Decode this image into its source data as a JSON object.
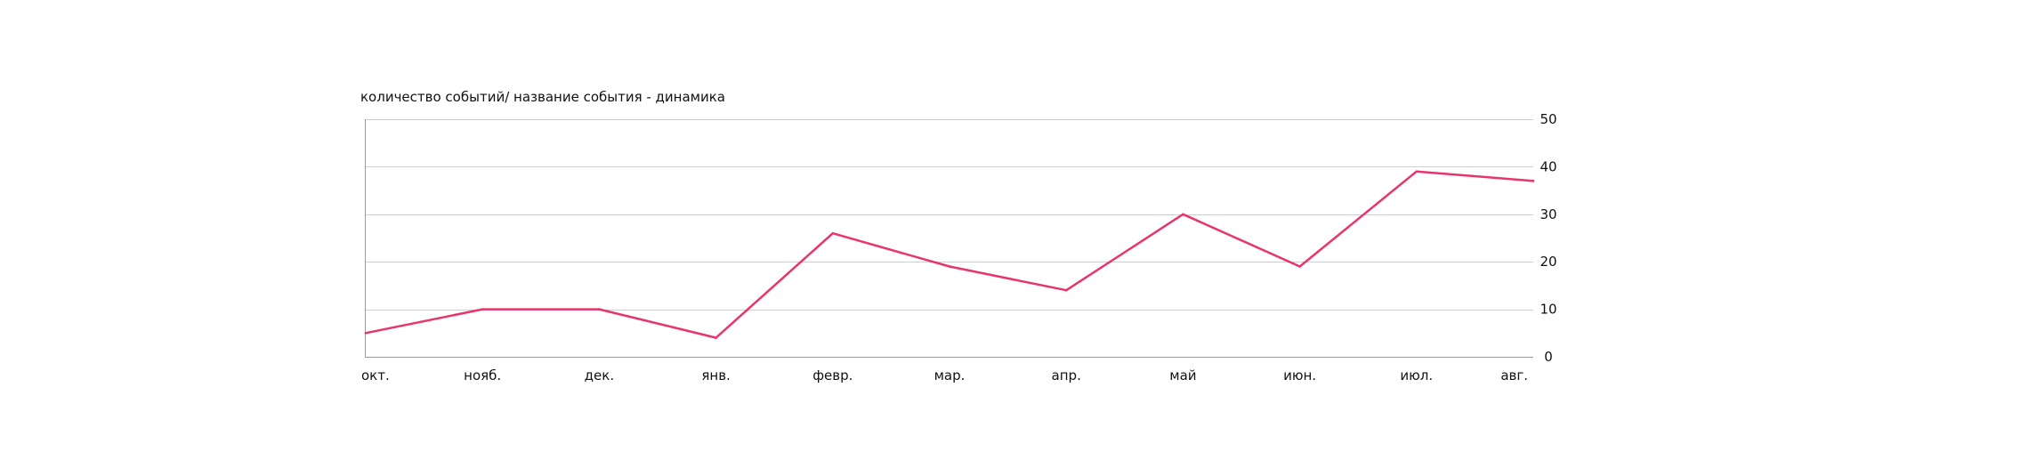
{
  "chart_data": {
    "type": "line",
    "title": "количество событий/ название события - динамика",
    "categories": [
      "окт.",
      "нояб.",
      "дек.",
      "янв.",
      "февр.",
      "мар.",
      "апр.",
      "май",
      "июн.",
      "июл.",
      "авг."
    ],
    "series": [
      {
        "values": [
          5,
          10,
          10,
          4,
          26,
          19,
          14,
          30,
          19,
          39,
          37
        ]
      }
    ],
    "ylim": [
      0,
      50
    ],
    "yticks": [
      "0",
      "10",
      "20",
      "30",
      "40",
      "50"
    ],
    "y_axis_side": "right",
    "grid": true,
    "line_color": "#e8356d",
    "grid_color": "#cfcfcf",
    "axis_color": "#9a9a9a"
  }
}
